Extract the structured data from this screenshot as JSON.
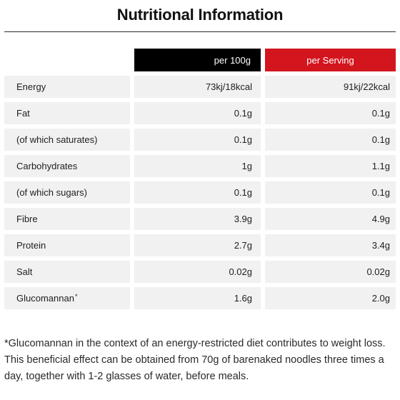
{
  "title": "Nutritional Information",
  "colors": {
    "per100_header_bg": "#000000",
    "serving_header_bg": "#d3151e",
    "row_bg": "#f1f1f1"
  },
  "headers": {
    "per100": "per 100g",
    "serving": "per Serving"
  },
  "rows": [
    {
      "label": "Energy",
      "per100": "73kj/18kcal",
      "serving": "91kj/22kcal"
    },
    {
      "label": "Fat",
      "per100": "0.1g",
      "serving": "0.1g"
    },
    {
      "label": "(of which saturates)",
      "per100": "0.1g",
      "serving": "0.1g"
    },
    {
      "label": "Carbohydrates",
      "per100": "1g",
      "serving": "1.1g"
    },
    {
      "label": "(of which sugars)",
      "per100": "0.1g",
      "serving": "0.1g"
    },
    {
      "label": "Fibre",
      "per100": "3.9g",
      "serving": "4.9g"
    },
    {
      "label": "Protein",
      "per100": "2.7g",
      "serving": "3.4g"
    },
    {
      "label": "Salt",
      "per100": "0.02g",
      "serving": "0.02g"
    },
    {
      "label": "Glucomannan",
      "label_mark": "*",
      "per100": "1.6g",
      "serving": "2.0g"
    }
  ],
  "footnote": "*Glucomannan in the context of an energy-restricted diet contributes to weight loss. This beneficial effect can be obtained from 70g of barenaked noodles three times a day, together with 1-2 glasses of water, before meals."
}
